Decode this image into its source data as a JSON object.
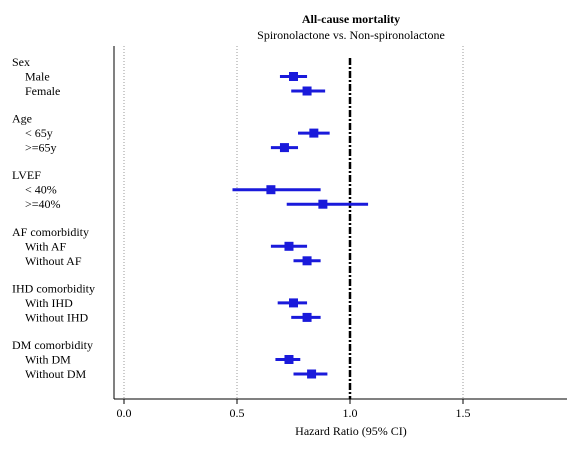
{
  "chart_data": {
    "type": "forest",
    "title": "All-cause mortality",
    "subtitle": "Spironolactone vs. Non-spironolactone",
    "xlabel": "Hazard Ratio (95% CI)",
    "xlim": [
      -0.05,
      1.95
    ],
    "xticks": [
      "0.0",
      "0.5",
      "1.0",
      "1.5"
    ],
    "xtick_values": [
      0.0,
      0.5,
      1.0,
      1.5
    ],
    "reference_line": 1.0,
    "grid": "vertical dotted at 0.0, 0.5, 1.5",
    "marker_color": "#1a1adb",
    "groups": [
      {
        "label": "Sex",
        "rows": [
          {
            "label": "Male",
            "hr": 0.75,
            "lo": 0.69,
            "hi": 0.81
          },
          {
            "label": "Female",
            "hr": 0.81,
            "lo": 0.74,
            "hi": 0.89
          }
        ]
      },
      {
        "label": "Age",
        "rows": [
          {
            "label": "< 65y",
            "hr": 0.84,
            "lo": 0.77,
            "hi": 0.91
          },
          {
            "label": ">=65y",
            "hr": 0.71,
            "lo": 0.65,
            "hi": 0.77
          }
        ]
      },
      {
        "label": "LVEF",
        "rows": [
          {
            "label": "< 40%",
            "hr": 0.65,
            "lo": 0.48,
            "hi": 0.87
          },
          {
            "label": ">=40%",
            "hr": 0.88,
            "lo": 0.72,
            "hi": 1.08
          }
        ]
      },
      {
        "label": "AF comorbidity",
        "rows": [
          {
            "label": "With AF",
            "hr": 0.73,
            "lo": 0.65,
            "hi": 0.81
          },
          {
            "label": "Without AF",
            "hr": 0.81,
            "lo": 0.75,
            "hi": 0.87
          }
        ]
      },
      {
        "label": "IHD comorbidity",
        "rows": [
          {
            "label": "With IHD",
            "hr": 0.75,
            "lo": 0.68,
            "hi": 0.81
          },
          {
            "label": "Without IHD",
            "hr": 0.81,
            "lo": 0.74,
            "hi": 0.87
          }
        ]
      },
      {
        "label": "DM comorbidity",
        "rows": [
          {
            "label": "With DM",
            "hr": 0.73,
            "lo": 0.67,
            "hi": 0.78
          },
          {
            "label": "Without DM",
            "hr": 0.83,
            "lo": 0.75,
            "hi": 0.9
          }
        ]
      }
    ]
  }
}
